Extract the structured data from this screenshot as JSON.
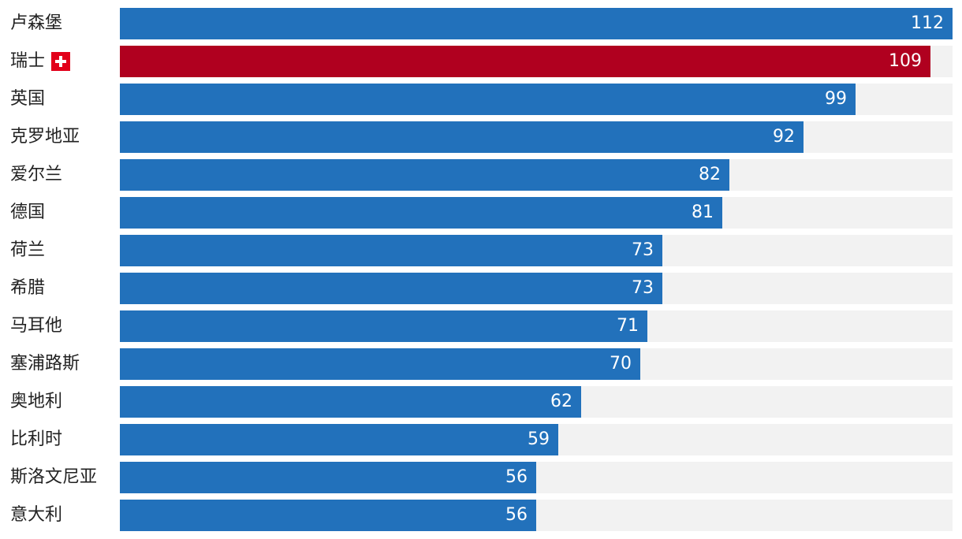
{
  "chart_data": {
    "type": "bar",
    "orientation": "horizontal",
    "categories": [
      "卢森堡",
      "瑞士",
      "英国",
      "克罗地亚",
      "爱尔兰",
      "德国",
      "荷兰",
      "希腊",
      "马耳他",
      "塞浦路斯",
      "奥地利",
      "比利时",
      "斯洛文尼亚",
      "意大利"
    ],
    "values": [
      112,
      109,
      99,
      92,
      82,
      81,
      73,
      73,
      71,
      70,
      62,
      59,
      56,
      56
    ],
    "highlight": "瑞士",
    "highlight_icon": "swiss-flag-icon",
    "xlim": [
      0,
      112
    ],
    "colors": {
      "bar": "#2271bb",
      "highlight": "#b0001f",
      "track": "#f2f2f2",
      "value_text": "#ffffff",
      "label_text": "#222222"
    },
    "grid": false,
    "legend": "none"
  }
}
